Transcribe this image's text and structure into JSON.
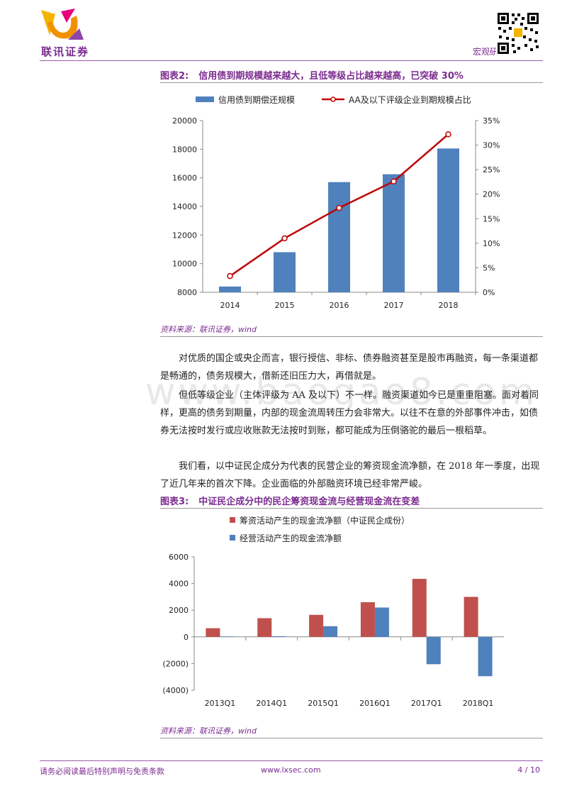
{
  "header": {
    "logo_text": "联讯证券",
    "section": "宏观研究"
  },
  "figure2": {
    "label": "图表2:",
    "title": "信用债到期规模越来越大，且低等级占比越来越高，已突破 30%",
    "source": "资料来源：联讯证券，wind",
    "chart_data": {
      "type": "bar",
      "categories": [
        "2014",
        "2015",
        "2016",
        "2017",
        "2018"
      ],
      "series": [
        {
          "name": "信用债到期偿还规模",
          "type": "bar",
          "axis": "left",
          "values": [
            8400,
            10800,
            15700,
            16250,
            18050
          ]
        },
        {
          "name": "AA及以下评级企业到期规模占比",
          "type": "line",
          "axis": "right",
          "values": [
            3.3,
            11.0,
            17.2,
            22.6,
            32.2
          ]
        }
      ],
      "left_ylim": [
        8000,
        20000
      ],
      "left_ticks": [
        "8000",
        "10000",
        "12000",
        "14000",
        "16000",
        "18000",
        "20000"
      ],
      "right_ylim": [
        0,
        35
      ],
      "right_ticks": [
        "0%",
        "5%",
        "10%",
        "15%",
        "20%",
        "25%",
        "30%",
        "35%"
      ],
      "legend": "top",
      "colors": {
        "bar": "#4f81bd",
        "line": "#c00000"
      }
    }
  },
  "paragraphs": [
    "对优质的国企或央企而言，银行授信、非标、债券融资甚至是股市再融资，每一条渠道都是畅通的，债务规模大，借新还旧压力大，再借就是。",
    "但低等级企业（主体评级为 AA 及以下）不一样。融资渠道如今已是重重阻塞。面对着同样，更高的债务到期量，内部的现金流周转压力会非常大。以往不在意的外部事件冲击，如债券无法按时发行或应收账款无法按时到账，都可能成为压倒骆驼的最后一根稻草。",
    "我们看，以中证民企成分为代表的民营企业的筹资现金流净额，在 2018 年一季度，出现了近几年来的首次下降。企业面临的外部融资环境已经非常严峻。"
  ],
  "figure3": {
    "label": "图表3:",
    "title": "中证民企成分中的民企筹资现金流与经营现金流在变差",
    "source": "资料来源：联讯证券，wind",
    "chart_data": {
      "type": "bar",
      "categories": [
        "2013Q1",
        "2014Q1",
        "2015Q1",
        "2016Q1",
        "2017Q1",
        "2018Q1"
      ],
      "series": [
        {
          "name": "筹资活动产生的现金流净额（中证民企成份）",
          "values": [
            650,
            1400,
            1650,
            2600,
            4350,
            3000
          ]
        },
        {
          "name": "经营活动产生的现金流净额",
          "values": [
            30,
            50,
            800,
            2200,
            -2050,
            -2950
          ]
        }
      ],
      "ylim": [
        -4000,
        6000
      ],
      "y_ticks": [
        "(4000)",
        "(2000)",
        "0",
        "2000",
        "4000",
        "6000"
      ],
      "legend": "top",
      "colors": {
        "s1": "#c0504d",
        "s2": "#4f81bd"
      }
    }
  },
  "footer": {
    "disclaimer": "请务必阅读最后特别声明与免责条款",
    "url": "www.lxsec.com",
    "page": "4 / 10"
  },
  "watermark": "www.baogao8.com"
}
